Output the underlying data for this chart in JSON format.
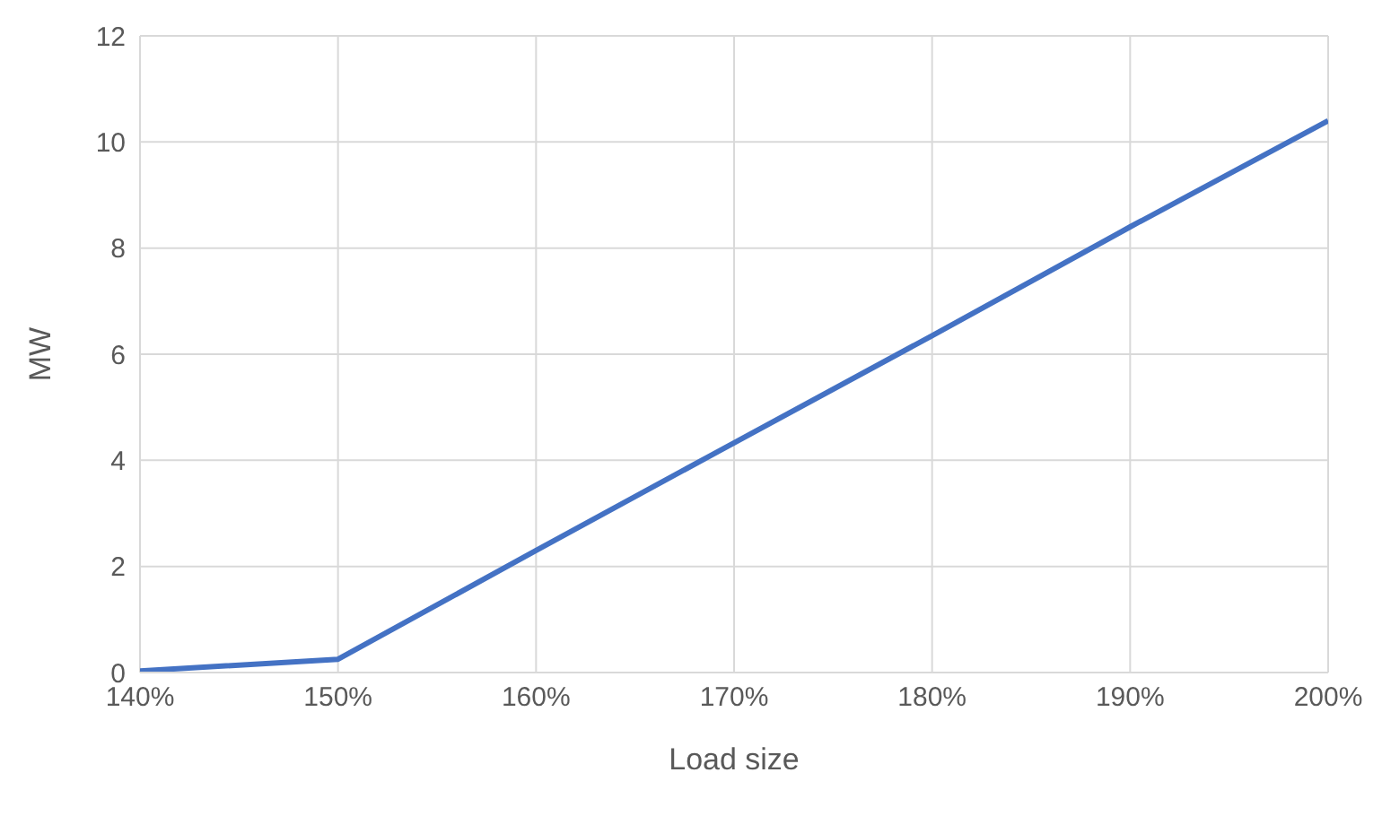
{
  "chart_data": {
    "type": "line",
    "xlabel": "Load size",
    "ylabel": "MW",
    "x": [
      140,
      150,
      160,
      170,
      180,
      190,
      200
    ],
    "series": [
      {
        "color": "#4472c4",
        "values": [
          0.03,
          0.25,
          2.3,
          4.33,
          6.35,
          8.4,
          10.4
        ]
      }
    ],
    "xlim": [
      140,
      200
    ],
    "xticks": [
      {
        "value": 140,
        "label": "140%"
      },
      {
        "value": 150,
        "label": "150%"
      },
      {
        "value": 160,
        "label": "160%"
      },
      {
        "value": 170,
        "label": "170%"
      },
      {
        "value": 180,
        "label": "180%"
      },
      {
        "value": 190,
        "label": "190%"
      },
      {
        "value": 200,
        "label": "200%"
      }
    ],
    "ylim": [
      0,
      12
    ],
    "yticks": [
      0,
      2,
      4,
      6,
      8,
      10,
      12
    ],
    "grid": true,
    "legend": false,
    "marker": "none",
    "line_style": "solid"
  }
}
